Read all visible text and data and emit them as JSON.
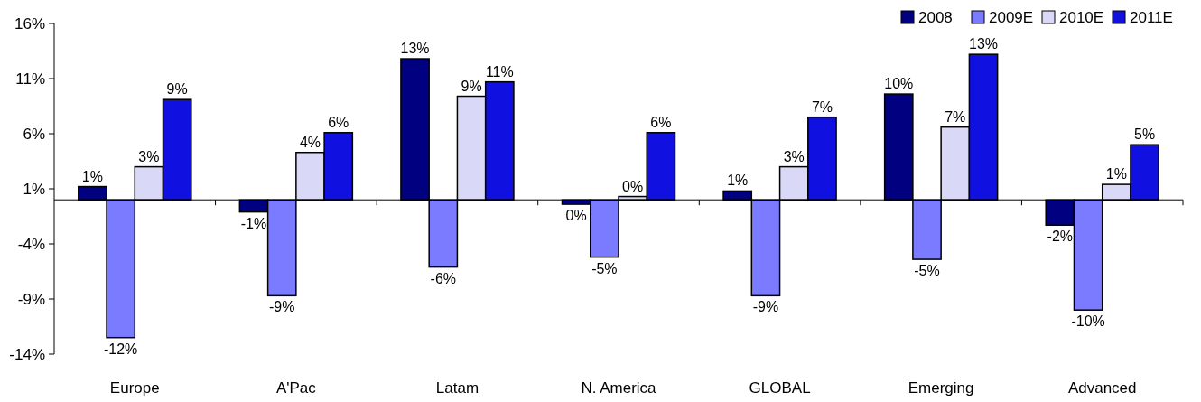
{
  "chart_data": {
    "type": "bar",
    "categories": [
      "Europe",
      "A'Pac",
      "Latam",
      "N. America",
      "GLOBAL",
      "Emerging",
      "Advanced"
    ],
    "series": [
      {
        "name": "2008",
        "color": "#000080",
        "values": [
          1.2,
          -1.1,
          12.8,
          -0.4,
          0.8,
          9.6,
          -2.3
        ],
        "value_labels": [
          "1%",
          "-1%",
          "13%",
          "0%",
          "1%",
          "10%",
          "-2%"
        ]
      },
      {
        "name": "2009E",
        "color": "#7b7bff",
        "values": [
          -12.5,
          -8.7,
          -6.1,
          -5.2,
          -8.7,
          -5.4,
          -10.0
        ],
        "value_labels": [
          "-12%",
          "-9%",
          "-6%",
          "-5%",
          "-9%",
          "-5%",
          "-10%"
        ]
      },
      {
        "name": "2010E",
        "color": "#d9d9f7",
        "values": [
          3.0,
          4.3,
          9.4,
          0.3,
          3.0,
          6.6,
          1.4
        ],
        "value_labels": [
          "3%",
          "4%",
          "9%",
          "0%",
          "3%",
          "7%",
          "1%"
        ]
      },
      {
        "name": "2011E",
        "color": "#1010e0",
        "values": [
          9.1,
          6.1,
          10.7,
          6.1,
          7.5,
          13.2,
          5.0
        ],
        "value_labels": [
          "9%",
          "6%",
          "11%",
          "6%",
          "7%",
          "13%",
          "5%"
        ]
      }
    ],
    "ylim": [
      -14,
      16
    ],
    "yticks": [
      {
        "value": -14,
        "label": "-14%"
      },
      {
        "value": -9,
        "label": "-9%"
      },
      {
        "value": -4,
        "label": "-4%"
      },
      {
        "value": 1,
        "label": "1%"
      },
      {
        "value": 6,
        "label": "6%"
      },
      {
        "value": 11,
        "label": "11%"
      },
      {
        "value": 16,
        "label": "16%"
      }
    ],
    "grid": false,
    "legend": "top right"
  }
}
